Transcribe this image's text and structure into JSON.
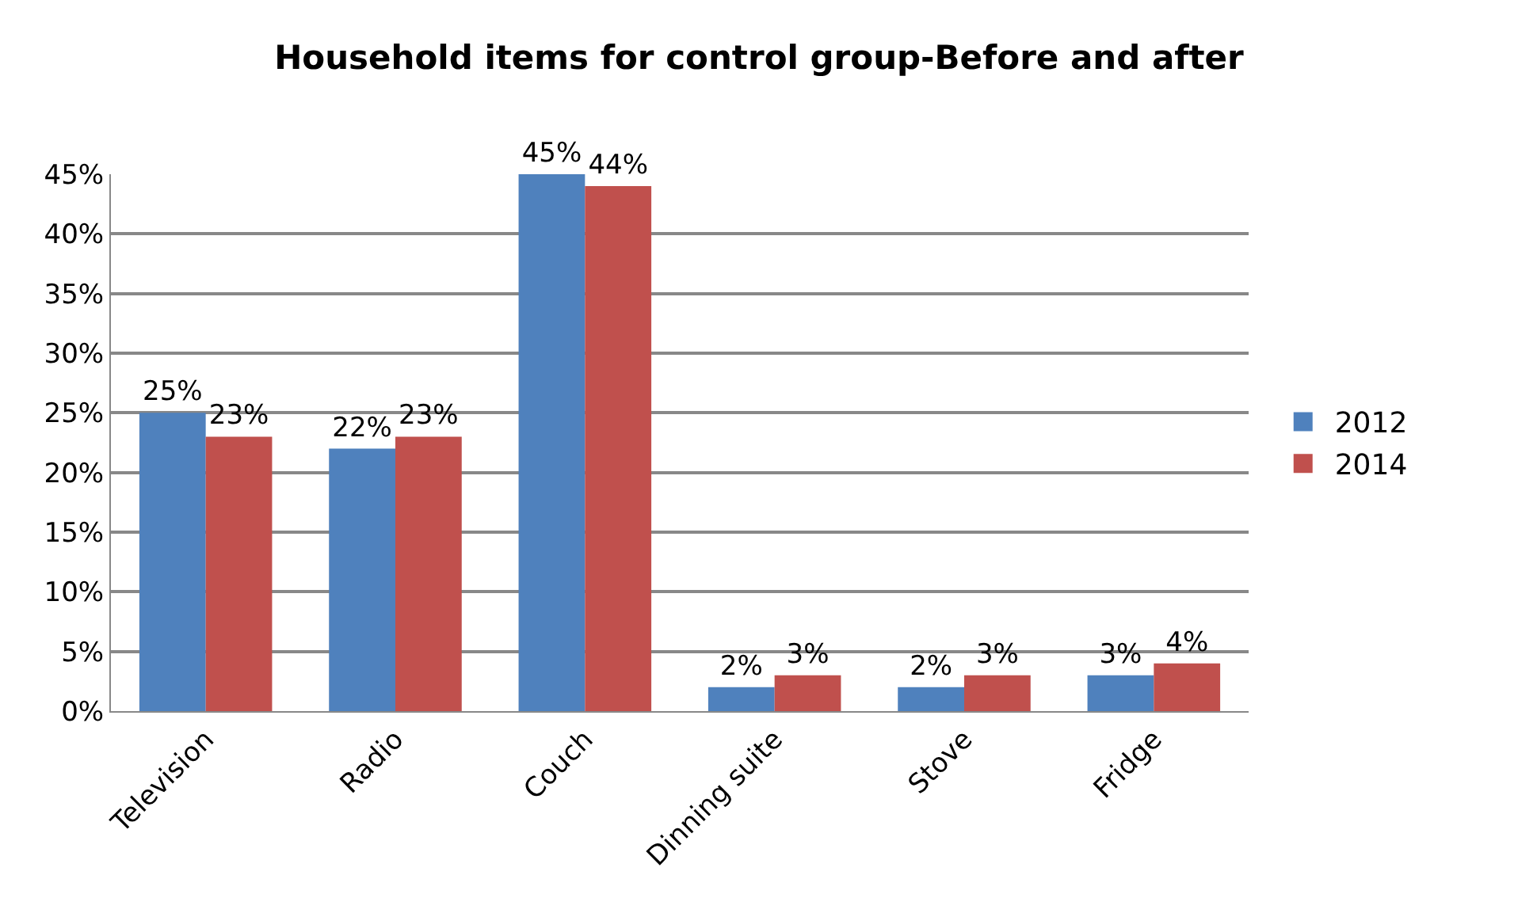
{
  "chart_data": {
    "type": "bar",
    "title": "Household items for control group-Before and after",
    "categories": [
      "Television",
      "Radio",
      "Couch",
      "Dinning suite",
      "Stove",
      "Fridge"
    ],
    "series": [
      {
        "name": "2012",
        "color": "#4f81bd",
        "values": [
          25,
          22,
          45,
          2,
          2,
          3
        ],
        "value_labels": [
          "25%",
          "22%",
          "45%",
          "2%",
          "2%",
          "3%"
        ]
      },
      {
        "name": "2014",
        "color": "#c0504d",
        "values": [
          23,
          23,
          44,
          3,
          3,
          4
        ],
        "value_labels": [
          "23%",
          "23%",
          "44%",
          "3%",
          "3%",
          "4%"
        ]
      }
    ],
    "ylim": [
      0,
      45
    ],
    "yticks": [
      {
        "value": 0,
        "label": "0%"
      },
      {
        "value": 5,
        "label": "5%"
      },
      {
        "value": 10,
        "label": "10%"
      },
      {
        "value": 15,
        "label": "15%"
      },
      {
        "value": 20,
        "label": "20%"
      },
      {
        "value": 25,
        "label": "25%"
      },
      {
        "value": 30,
        "label": "30%"
      },
      {
        "value": 35,
        "label": "35%"
      },
      {
        "value": 40,
        "label": "40%"
      },
      {
        "value": 45,
        "label": "45%"
      }
    ],
    "grid": "y",
    "legend": "right"
  }
}
